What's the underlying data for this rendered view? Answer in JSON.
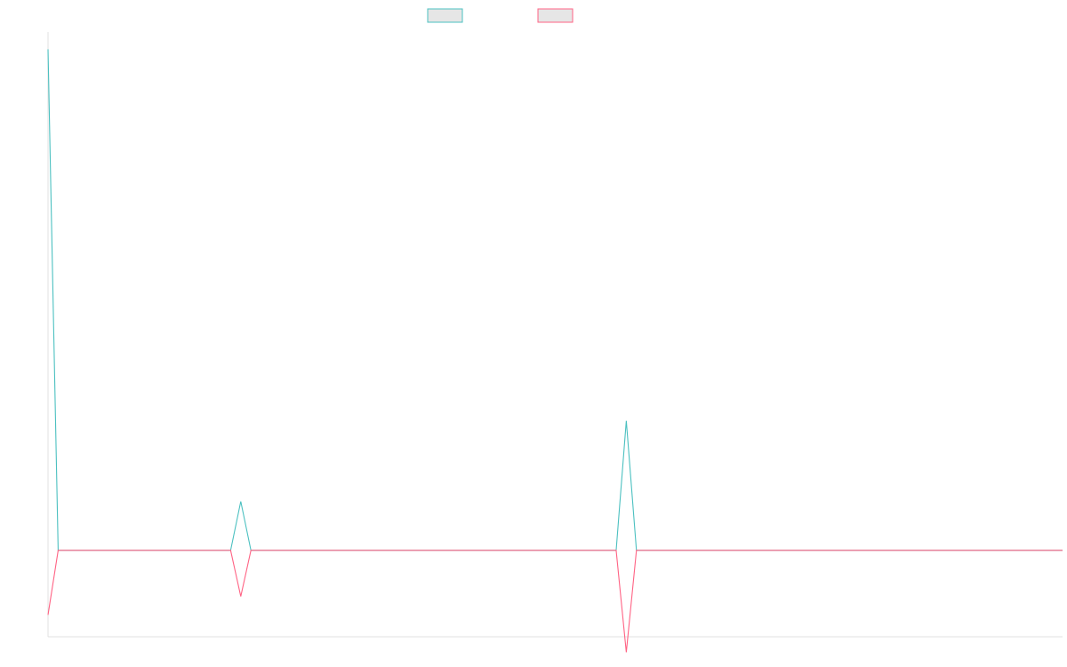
{
  "chart_data": {
    "type": "line",
    "title": "",
    "xlabel": "",
    "ylabel": "",
    "grid": false,
    "legend_position": "top-center",
    "ylim": [
      -1500,
      9000
    ],
    "x": [
      0,
      1,
      2,
      3,
      4,
      5,
      6,
      7,
      8,
      9,
      10,
      11,
      12,
      13,
      14,
      15,
      16,
      17,
      18,
      19,
      20,
      21,
      22,
      23,
      24,
      25,
      26,
      27,
      28,
      29,
      30,
      31,
      32,
      33,
      34,
      35,
      36,
      37,
      38,
      39,
      40,
      41,
      42,
      43,
      44,
      45,
      46,
      47,
      48,
      49,
      50,
      51,
      52,
      53,
      54,
      55,
      56,
      57,
      58,
      59,
      60,
      61,
      62,
      63,
      64,
      65,
      66,
      67,
      68,
      69,
      70,
      71,
      72,
      73,
      74,
      75,
      76,
      77,
      78,
      79,
      80,
      81,
      82,
      83,
      84,
      85,
      86,
      87,
      88,
      89,
      90,
      91,
      92,
      93,
      94,
      95,
      96,
      97,
      98,
      99,
      100
    ],
    "series": [
      {
        "color": "#4bc0c0",
        "legend_fill": "#e6e6e6",
        "values": [
          8700,
          0,
          0,
          0,
          0,
          0,
          0,
          0,
          0,
          0,
          0,
          0,
          0,
          0,
          0,
          0,
          0,
          0,
          0,
          850,
          0,
          0,
          0,
          0,
          0,
          0,
          0,
          0,
          0,
          0,
          0,
          0,
          0,
          0,
          0,
          0,
          0,
          0,
          0,
          0,
          0,
          0,
          0,
          0,
          0,
          0,
          0,
          0,
          0,
          0,
          0,
          0,
          0,
          0,
          0,
          0,
          0,
          2250,
          0,
          0,
          0,
          0,
          0,
          0,
          0,
          0,
          0,
          0,
          0,
          0,
          0,
          0,
          0,
          0,
          0,
          0,
          0,
          0,
          0,
          0,
          0,
          0,
          0,
          0,
          0,
          0,
          0,
          0,
          0,
          0,
          0,
          0,
          0,
          0,
          0,
          0,
          0,
          0,
          0,
          0,
          0
        ]
      },
      {
        "color": "#ff6384",
        "legend_fill": "#e6e6e6",
        "values": [
          -1120,
          0,
          0,
          0,
          0,
          0,
          0,
          0,
          0,
          0,
          0,
          0,
          0,
          0,
          0,
          0,
          0,
          0,
          0,
          -800,
          0,
          0,
          0,
          0,
          0,
          0,
          0,
          0,
          0,
          0,
          0,
          0,
          0,
          0,
          0,
          0,
          0,
          0,
          0,
          0,
          0,
          0,
          0,
          0,
          0,
          0,
          0,
          0,
          0,
          0,
          0,
          0,
          0,
          0,
          0,
          0,
          0,
          -1770,
          0,
          0,
          0,
          0,
          0,
          0,
          0,
          0,
          0,
          0,
          0,
          0,
          0,
          0,
          0,
          0,
          0,
          0,
          0,
          0,
          0,
          0,
          0,
          0,
          0,
          0,
          0,
          0,
          0,
          0,
          0,
          0,
          0,
          0,
          0,
          0,
          0,
          0,
          0,
          0,
          0,
          0,
          0
        ]
      }
    ]
  }
}
